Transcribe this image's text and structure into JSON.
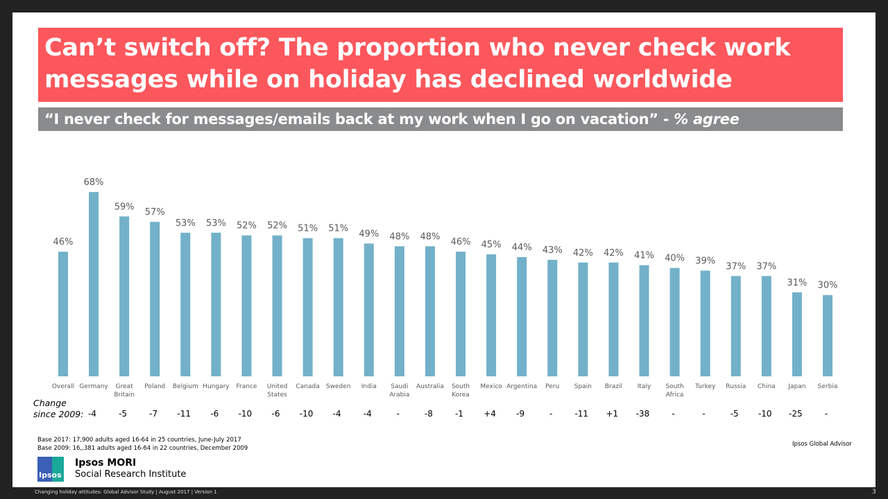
{
  "title": "Can’t switch off? The proportion who never check work messages while on holiday has declined worldwide",
  "subtitle": {
    "quote": "“I never check for messages/emails back at my work when I go on vacation” - ",
    "measure": "% agree"
  },
  "change_label": [
    "Change",
    "since 2009:"
  ],
  "colors": {
    "bar": "#72b1c9",
    "title_bg": "#fc575c",
    "subtitle_bg": "#8a8b8d"
  },
  "chart_data": {
    "type": "bar",
    "title": "",
    "xlabel": "",
    "ylabel": "",
    "ylim": [
      0,
      70
    ],
    "grid": false,
    "value_suffix": "%",
    "categories": [
      "Overall",
      "Germany",
      "Great Britain",
      "Poland",
      "Belgium",
      "Hungary",
      "France",
      "United States",
      "Canada",
      "Sweden",
      "India",
      "Saudi Arabia",
      "Australia",
      "South Korea",
      "Mexico",
      "Argentina",
      "Peru",
      "Spain",
      "Brazil",
      "Italy",
      "South Africa",
      "Turkey",
      "Russia",
      "China",
      "Japan",
      "Serbia"
    ],
    "values": [
      46,
      68,
      59,
      57,
      53,
      53,
      52,
      52,
      51,
      51,
      49,
      48,
      48,
      46,
      45,
      44,
      43,
      42,
      42,
      41,
      40,
      39,
      37,
      37,
      31,
      30
    ],
    "change_since_2009": [
      "-4",
      "-5",
      "-7",
      "-11",
      "-6",
      "-10",
      "-6",
      "-10",
      "-4",
      "-4",
      "-",
      "-8",
      "-1",
      "+4",
      "-9",
      "-",
      "-11",
      "+1",
      "-38",
      "-",
      "-",
      "-5",
      "-10",
      "-25",
      "-",
      ""
    ]
  },
  "notes": {
    "base_2017": "Base 2017: 17,900 adults aged 16-64 in 25 countries, June-July 2017",
    "base_2009": "Base 2009: 16,,381  adults aged 16-64 in 22 countries, December 2009",
    "source": "Ipsos Global Advisor"
  },
  "logo": {
    "mark": "Ipsos",
    "name": "Ipsos MORI",
    "tagline": "Social Research Institute"
  },
  "footer": {
    "text": "Changing holiday attitudes: Global Advisor Study | August 2017 | Version 1",
    "page": "3"
  }
}
